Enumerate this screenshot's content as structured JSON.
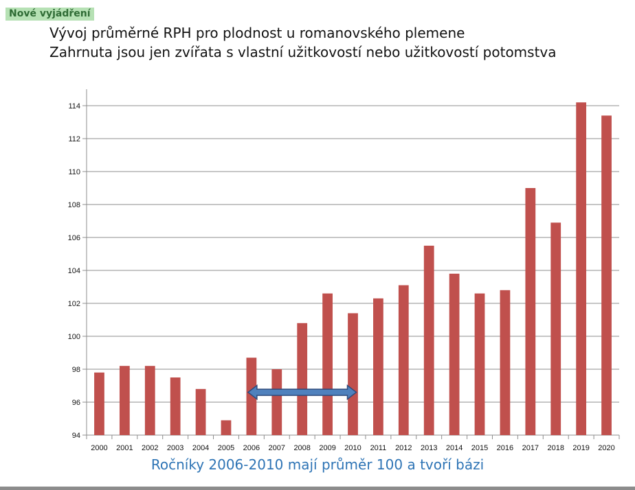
{
  "badge": "Nové vyjádření",
  "chart_data": {
    "type": "bar",
    "title": "Vývoj průměrné RPH pro plodnost u romanovského plemene",
    "subtitle": "Zahrnuta jsou jen zvířata s vlastní užitkovostí nebo užitkovostí potomstva",
    "xlabel": "",
    "ylabel": "",
    "categories": [
      "2000",
      "2001",
      "2002",
      "2003",
      "2004",
      "2005",
      "2006",
      "2007",
      "2008",
      "2009",
      "2010",
      "2011",
      "2012",
      "2013",
      "2014",
      "2015",
      "2016",
      "2017",
      "2018",
      "2019",
      "2020"
    ],
    "values": [
      97.8,
      98.2,
      98.2,
      97.5,
      96.8,
      94.9,
      98.7,
      98.0,
      100.8,
      102.6,
      101.4,
      102.3,
      103.1,
      105.5,
      103.8,
      102.6,
      102.8,
      109.0,
      106.9,
      114.2,
      113.4
    ],
    "ylim": [
      94,
      115
    ],
    "yticks": [
      94,
      96,
      98,
      100,
      102,
      104,
      106,
      108,
      110,
      112,
      114
    ],
    "grid": true,
    "bar_color": "#c0504d",
    "annotation": {
      "type": "double-arrow",
      "from": "2006",
      "to": "2010",
      "fill": "#4f81bd",
      "stroke": "#2f4b7c"
    }
  },
  "caption": "Ročníky 2006-2010 mají průměr 100 a tvoří bázi"
}
